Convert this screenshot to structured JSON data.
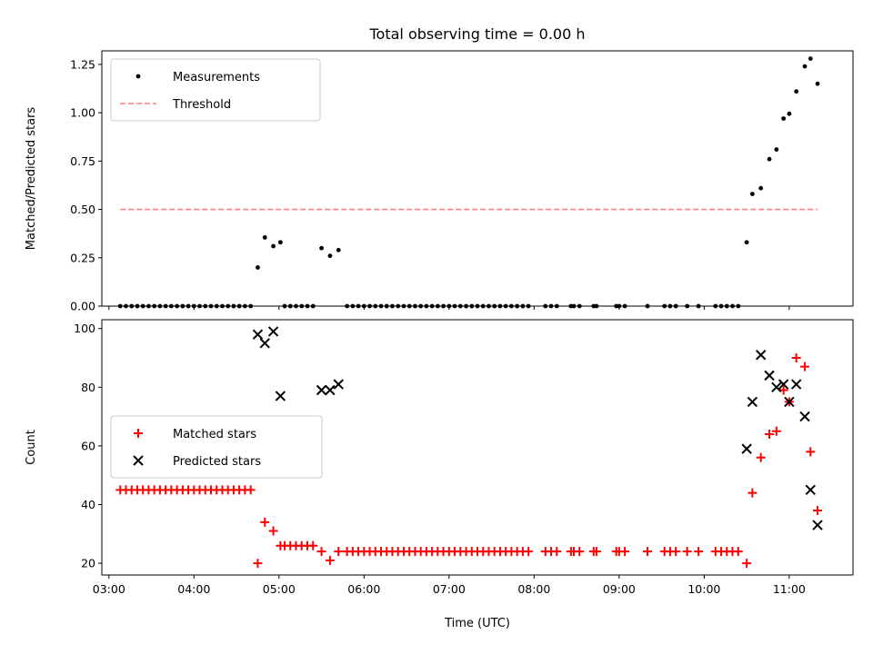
{
  "chart_data": {
    "type": "scatter",
    "title": "Total observing time = 0.00 h",
    "xlabel": "Time (UTC)",
    "x_ticks": [
      "03:00",
      "04:00",
      "05:00",
      "06:00",
      "07:00",
      "08:00",
      "09:00",
      "10:00",
      "11:00"
    ],
    "x_range": [
      "02:55",
      "11:45"
    ],
    "panels": [
      {
        "ylabel": "Matched/Predicted stars",
        "ylim": [
          0,
          1.32
        ],
        "y_ticks": [
          "0.00",
          "0.25",
          "0.50",
          "0.75",
          "1.00",
          "1.25"
        ],
        "legend": "top-left",
        "series": [
          {
            "name": "Measurements",
            "style": "dot",
            "color": "#000000",
            "points": [
              [
                "03:08",
                0
              ],
              [
                "03:12",
                0
              ],
              [
                "03:16",
                0
              ],
              [
                "03:20",
                0
              ],
              [
                "03:24",
                0
              ],
              [
                "03:28",
                0
              ],
              [
                "03:32",
                0
              ],
              [
                "03:36",
                0
              ],
              [
                "03:40",
                0
              ],
              [
                "03:44",
                0
              ],
              [
                "03:48",
                0
              ],
              [
                "03:52",
                0
              ],
              [
                "03:56",
                0
              ],
              [
                "04:00",
                0
              ],
              [
                "04:04",
                0
              ],
              [
                "04:08",
                0
              ],
              [
                "04:12",
                0
              ],
              [
                "04:16",
                0
              ],
              [
                "04:20",
                0
              ],
              [
                "04:24",
                0
              ],
              [
                "04:28",
                0
              ],
              [
                "04:32",
                0
              ],
              [
                "04:36",
                0
              ],
              [
                "04:40",
                0
              ],
              [
                "04:45",
                0.2
              ],
              [
                "04:50",
                0.355
              ],
              [
                "04:56",
                0.31
              ],
              [
                "05:01",
                0.33
              ],
              [
                "05:04",
                0
              ],
              [
                "05:08",
                0
              ],
              [
                "05:12",
                0
              ],
              [
                "05:16",
                0
              ],
              [
                "05:20",
                0
              ],
              [
                "05:24",
                0
              ],
              [
                "05:30",
                0.3
              ],
              [
                "05:36",
                0.26
              ],
              [
                "05:42",
                0.29
              ],
              [
                "05:48",
                0
              ],
              [
                "05:52",
                0
              ],
              [
                "05:56",
                0
              ],
              [
                "06:00",
                0
              ],
              [
                "06:04",
                0
              ],
              [
                "06:08",
                0
              ],
              [
                "06:12",
                0
              ],
              [
                "06:16",
                0
              ],
              [
                "06:20",
                0
              ],
              [
                "06:24",
                0
              ],
              [
                "06:28",
                0
              ],
              [
                "06:32",
                0
              ],
              [
                "06:36",
                0
              ],
              [
                "06:40",
                0
              ],
              [
                "06:44",
                0
              ],
              [
                "06:48",
                0
              ],
              [
                "06:52",
                0
              ],
              [
                "06:56",
                0
              ],
              [
                "07:00",
                0
              ],
              [
                "07:04",
                0
              ],
              [
                "07:08",
                0
              ],
              [
                "07:12",
                0
              ],
              [
                "07:16",
                0
              ],
              [
                "07:20",
                0
              ],
              [
                "07:24",
                0
              ],
              [
                "07:28",
                0
              ],
              [
                "07:32",
                0
              ],
              [
                "07:36",
                0
              ],
              [
                "07:40",
                0
              ],
              [
                "07:44",
                0
              ],
              [
                "07:48",
                0
              ],
              [
                "07:52",
                0
              ],
              [
                "07:56",
                0
              ],
              [
                "08:08",
                0
              ],
              [
                "08:12",
                0
              ],
              [
                "08:16",
                0
              ],
              [
                "08:26",
                0
              ],
              [
                "08:28",
                0
              ],
              [
                "08:32",
                0
              ],
              [
                "08:42",
                0
              ],
              [
                "08:44",
                0
              ],
              [
                "08:58",
                0
              ],
              [
                "09:00",
                0
              ],
              [
                "09:04",
                0
              ],
              [
                "09:20",
                0
              ],
              [
                "09:32",
                0
              ],
              [
                "09:36",
                0
              ],
              [
                "09:40",
                0
              ],
              [
                "09:48",
                0
              ],
              [
                "09:56",
                0
              ],
              [
                "10:08",
                0
              ],
              [
                "10:12",
                0
              ],
              [
                "10:16",
                0
              ],
              [
                "10:20",
                0
              ],
              [
                "10:24",
                0
              ],
              [
                "10:30",
                0.33
              ],
              [
                "10:34",
                0.58
              ],
              [
                "10:40",
                0.61
              ],
              [
                "10:46",
                0.76
              ],
              [
                "10:51",
                0.81
              ],
              [
                "10:56",
                0.97
              ],
              [
                "11:00",
                0.995
              ],
              [
                "11:05",
                1.11
              ],
              [
                "11:11",
                1.24
              ],
              [
                "11:15",
                1.28
              ],
              [
                "11:20",
                1.15
              ]
            ]
          },
          {
            "name": "Threshold",
            "style": "dashed-line",
            "color": "#ff8080",
            "points": [
              [
                "03:08",
                0.5
              ],
              [
                "11:20",
                0.5
              ]
            ]
          }
        ]
      },
      {
        "ylabel": "Count",
        "ylim": [
          16,
          103
        ],
        "y_ticks": [
          "20",
          "40",
          "60",
          "80",
          "100"
        ],
        "legend": "center-left",
        "series": [
          {
            "name": "Matched stars",
            "style": "plus",
            "color": "#ff0000",
            "points": [
              [
                "03:08",
                45
              ],
              [
                "03:12",
                45
              ],
              [
                "03:16",
                45
              ],
              [
                "03:20",
                45
              ],
              [
                "03:24",
                45
              ],
              [
                "03:28",
                45
              ],
              [
                "03:32",
                45
              ],
              [
                "03:36",
                45
              ],
              [
                "03:40",
                45
              ],
              [
                "03:44",
                45
              ],
              [
                "03:48",
                45
              ],
              [
                "03:52",
                45
              ],
              [
                "03:56",
                45
              ],
              [
                "04:00",
                45
              ],
              [
                "04:04",
                45
              ],
              [
                "04:08",
                45
              ],
              [
                "04:12",
                45
              ],
              [
                "04:16",
                45
              ],
              [
                "04:20",
                45
              ],
              [
                "04:24",
                45
              ],
              [
                "04:28",
                45
              ],
              [
                "04:32",
                45
              ],
              [
                "04:36",
                45
              ],
              [
                "04:40",
                45
              ],
              [
                "04:45",
                20
              ],
              [
                "04:50",
                34
              ],
              [
                "04:56",
                31
              ],
              [
                "05:01",
                26
              ],
              [
                "05:04",
                26
              ],
              [
                "05:08",
                26
              ],
              [
                "05:12",
                26
              ],
              [
                "05:16",
                26
              ],
              [
                "05:20",
                26
              ],
              [
                "05:24",
                26
              ],
              [
                "05:30",
                24
              ],
              [
                "05:36",
                21
              ],
              [
                "05:42",
                24
              ],
              [
                "05:48",
                24
              ],
              [
                "05:52",
                24
              ],
              [
                "05:56",
                24
              ],
              [
                "06:00",
                24
              ],
              [
                "06:04",
                24
              ],
              [
                "06:08",
                24
              ],
              [
                "06:12",
                24
              ],
              [
                "06:16",
                24
              ],
              [
                "06:20",
                24
              ],
              [
                "06:24",
                24
              ],
              [
                "06:28",
                24
              ],
              [
                "06:32",
                24
              ],
              [
                "06:36",
                24
              ],
              [
                "06:40",
                24
              ],
              [
                "06:44",
                24
              ],
              [
                "06:48",
                24
              ],
              [
                "06:52",
                24
              ],
              [
                "06:56",
                24
              ],
              [
                "07:00",
                24
              ],
              [
                "07:04",
                24
              ],
              [
                "07:08",
                24
              ],
              [
                "07:12",
                24
              ],
              [
                "07:16",
                24
              ],
              [
                "07:20",
                24
              ],
              [
                "07:24",
                24
              ],
              [
                "07:28",
                24
              ],
              [
                "07:32",
                24
              ],
              [
                "07:36",
                24
              ],
              [
                "07:40",
                24
              ],
              [
                "07:44",
                24
              ],
              [
                "07:48",
                24
              ],
              [
                "07:52",
                24
              ],
              [
                "07:56",
                24
              ],
              [
                "08:08",
                24
              ],
              [
                "08:12",
                24
              ],
              [
                "08:16",
                24
              ],
              [
                "08:26",
                24
              ],
              [
                "08:28",
                24
              ],
              [
                "08:32",
                24
              ],
              [
                "08:42",
                24
              ],
              [
                "08:44",
                24
              ],
              [
                "08:58",
                24
              ],
              [
                "09:00",
                24
              ],
              [
                "09:04",
                24
              ],
              [
                "09:20",
                24
              ],
              [
                "09:32",
                24
              ],
              [
                "09:36",
                24
              ],
              [
                "09:40",
                24
              ],
              [
                "09:48",
                24
              ],
              [
                "09:56",
                24
              ],
              [
                "10:08",
                24
              ],
              [
                "10:12",
                24
              ],
              [
                "10:16",
                24
              ],
              [
                "10:20",
                24
              ],
              [
                "10:24",
                24
              ],
              [
                "10:30",
                20
              ],
              [
                "10:34",
                44
              ],
              [
                "10:40",
                56
              ],
              [
                "10:46",
                64
              ],
              [
                "10:51",
                65
              ],
              [
                "10:56",
                79
              ],
              [
                "11:00",
                75
              ],
              [
                "11:05",
                90
              ],
              [
                "11:11",
                87
              ],
              [
                "11:15",
                58
              ],
              [
                "11:20",
                38
              ]
            ]
          },
          {
            "name": "Predicted stars",
            "style": "x",
            "color": "#000000",
            "points": [
              [
                "04:45",
                98
              ],
              [
                "04:50",
                95
              ],
              [
                "04:56",
                99
              ],
              [
                "05:01",
                77
              ],
              [
                "05:30",
                79
              ],
              [
                "05:36",
                79
              ],
              [
                "05:42",
                81
              ],
              [
                "10:30",
                59
              ],
              [
                "10:34",
                75
              ],
              [
                "10:40",
                91
              ],
              [
                "10:46",
                84
              ],
              [
                "10:51",
                80
              ],
              [
                "10:56",
                81
              ],
              [
                "11:00",
                75
              ],
              [
                "11:05",
                81
              ],
              [
                "11:11",
                70
              ],
              [
                "11:15",
                45
              ],
              [
                "11:20",
                33
              ]
            ]
          }
        ]
      }
    ]
  }
}
